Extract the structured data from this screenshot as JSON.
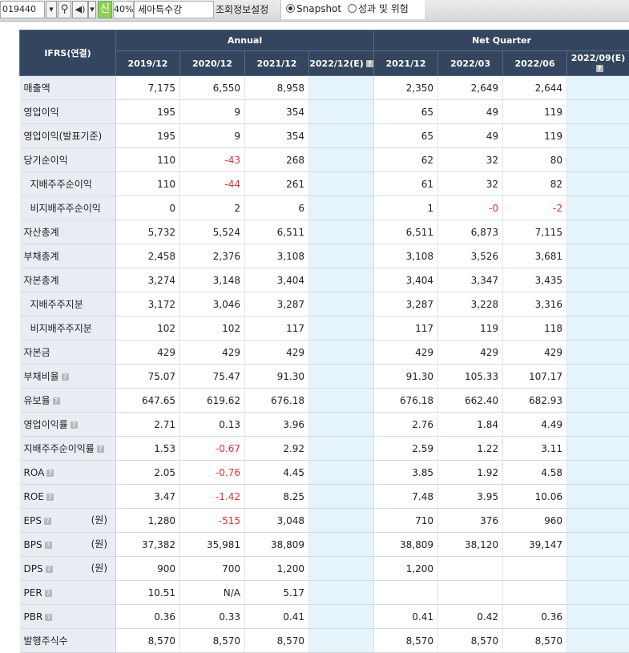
{
  "toolbar": {
    "code": "019440",
    "shin_label": "신",
    "percent": "40%",
    "company": "세아특수강",
    "settings_label": "조회정보설정",
    "radio_snapshot": "Snapshot",
    "radio_perf": "성과 및 위험",
    "selected": "Snapshot"
  },
  "table": {
    "corner": "IFRS(연결)",
    "annual_label": "Annual",
    "quarter_label": "Net Quarter",
    "annual_periods": [
      "2019/12",
      "2020/12",
      "2021/12",
      "2022/12(E)"
    ],
    "quarter_periods": [
      "2021/12",
      "2022/03",
      "2022/06",
      "2022/09(E)"
    ],
    "rows": [
      {
        "label": "매출액",
        "indent": false,
        "help": false,
        "unit": "",
        "vals": [
          "7,175",
          "6,550",
          "8,958",
          "",
          "2,350",
          "2,649",
          "2,644",
          ""
        ]
      },
      {
        "label": "영업이익",
        "indent": false,
        "help": false,
        "unit": "",
        "vals": [
          "195",
          "9",
          "354",
          "",
          "65",
          "49",
          "119",
          ""
        ]
      },
      {
        "label": "영업이익(발표기준)",
        "indent": false,
        "help": false,
        "unit": "",
        "vals": [
          "195",
          "9",
          "354",
          "",
          "65",
          "49",
          "119",
          ""
        ]
      },
      {
        "label": "당기순이익",
        "indent": false,
        "help": false,
        "unit": "",
        "vals": [
          "110",
          "-43",
          "268",
          "",
          "62",
          "32",
          "80",
          ""
        ]
      },
      {
        "label": "지배주주순이익",
        "indent": true,
        "help": false,
        "unit": "",
        "vals": [
          "110",
          "-44",
          "261",
          "",
          "61",
          "32",
          "82",
          ""
        ]
      },
      {
        "label": "비지배주주순이익",
        "indent": true,
        "help": false,
        "unit": "",
        "vals": [
          "0",
          "2",
          "6",
          "",
          "1",
          "-0",
          "-2",
          ""
        ]
      },
      {
        "label": "자산총계",
        "indent": false,
        "help": false,
        "unit": "",
        "vals": [
          "5,732",
          "5,524",
          "6,511",
          "",
          "6,511",
          "6,873",
          "7,115",
          ""
        ]
      },
      {
        "label": "부채총계",
        "indent": false,
        "help": false,
        "unit": "",
        "vals": [
          "2,458",
          "2,376",
          "3,108",
          "",
          "3,108",
          "3,526",
          "3,681",
          ""
        ]
      },
      {
        "label": "자본총계",
        "indent": false,
        "help": false,
        "unit": "",
        "vals": [
          "3,274",
          "3,148",
          "3,404",
          "",
          "3,404",
          "3,347",
          "3,435",
          ""
        ]
      },
      {
        "label": "지배주주지분",
        "indent": true,
        "help": false,
        "unit": "",
        "vals": [
          "3,172",
          "3,046",
          "3,287",
          "",
          "3,287",
          "3,228",
          "3,316",
          ""
        ]
      },
      {
        "label": "비지배주주지분",
        "indent": true,
        "help": false,
        "unit": "",
        "vals": [
          "102",
          "102",
          "117",
          "",
          "117",
          "119",
          "118",
          ""
        ]
      },
      {
        "label": "자본금",
        "indent": false,
        "help": false,
        "unit": "",
        "vals": [
          "429",
          "429",
          "429",
          "",
          "429",
          "429",
          "429",
          ""
        ]
      },
      {
        "label": "부채비율",
        "indent": false,
        "help": true,
        "unit": "",
        "vals": [
          "75.07",
          "75.47",
          "91.30",
          "",
          "91.30",
          "105.33",
          "107.17",
          ""
        ]
      },
      {
        "label": "유보율",
        "indent": false,
        "help": true,
        "unit": "",
        "vals": [
          "647.65",
          "619.62",
          "676.18",
          "",
          "676.18",
          "662.40",
          "682.93",
          ""
        ]
      },
      {
        "label": "영업이익률",
        "indent": false,
        "help": true,
        "unit": "",
        "vals": [
          "2.71",
          "0.13",
          "3.96",
          "",
          "2.76",
          "1.84",
          "4.49",
          ""
        ]
      },
      {
        "label": "지배주주순이익률",
        "indent": false,
        "help": true,
        "unit": "",
        "vals": [
          "1.53",
          "-0.67",
          "2.92",
          "",
          "2.59",
          "1.22",
          "3.11",
          ""
        ]
      },
      {
        "label": "ROA",
        "indent": false,
        "help": true,
        "unit": "",
        "vals": [
          "2.05",
          "-0.76",
          "4.45",
          "",
          "3.85",
          "1.92",
          "4.58",
          ""
        ]
      },
      {
        "label": "ROE",
        "indent": false,
        "help": true,
        "unit": "",
        "vals": [
          "3.47",
          "-1.42",
          "8.25",
          "",
          "7.48",
          "3.95",
          "10.06",
          ""
        ]
      },
      {
        "label": "EPS",
        "indent": false,
        "help": true,
        "unit": "(원)",
        "vals": [
          "1,280",
          "-515",
          "3,048",
          "",
          "710",
          "376",
          "960",
          ""
        ]
      },
      {
        "label": "BPS",
        "indent": false,
        "help": true,
        "unit": "(원)",
        "vals": [
          "37,382",
          "35,981",
          "38,809",
          "",
          "38,809",
          "38,120",
          "39,147",
          ""
        ]
      },
      {
        "label": "DPS",
        "indent": false,
        "help": true,
        "unit": "(원)",
        "vals": [
          "900",
          "700",
          "1,200",
          "",
          "1,200",
          "",
          "",
          ""
        ]
      },
      {
        "label": "PER",
        "indent": false,
        "help": true,
        "unit": "",
        "vals": [
          "10.51",
          "N/A",
          "5.17",
          "",
          "",
          "",
          "",
          ""
        ]
      },
      {
        "label": "PBR",
        "indent": false,
        "help": true,
        "unit": "",
        "vals": [
          "0.36",
          "0.33",
          "0.41",
          "",
          "0.41",
          "0.42",
          "0.36",
          ""
        ]
      },
      {
        "label": "발행주식수",
        "indent": false,
        "help": false,
        "unit": "",
        "vals": [
          "8,570",
          "8,570",
          "8,570",
          "",
          "8,570",
          "8,570",
          "8,570",
          ""
        ]
      }
    ]
  }
}
